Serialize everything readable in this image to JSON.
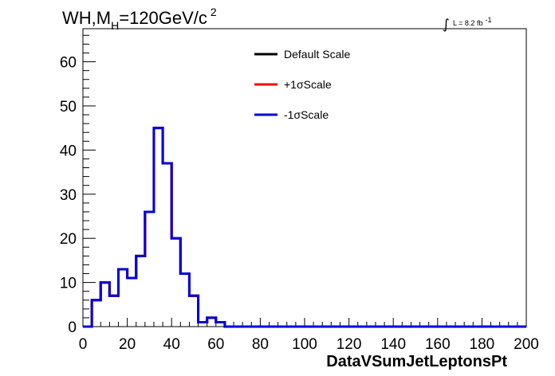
{
  "chart_data": {
    "type": "step",
    "title_prefix": "WH,M",
    "title_sub": "H",
    "title_suffix": "=120GeV/c",
    "title_sup": "2",
    "lumi_label": "L = 8.2 fb",
    "lumi_sup": "-1",
    "xlabel": "DataVSumJetLeptonsPt",
    "ylabel": "",
    "xlim": [
      0,
      200
    ],
    "ylim": [
      0,
      67.5
    ],
    "x_ticks": [
      0,
      20,
      40,
      60,
      80,
      100,
      120,
      140,
      160,
      180,
      200
    ],
    "y_ticks": [
      0,
      10,
      20,
      30,
      40,
      50,
      60
    ],
    "x_tick_labels": [
      "0",
      "20",
      "40",
      "60",
      "80",
      "100",
      "120",
      "140",
      "160",
      "180",
      "200"
    ],
    "y_tick_labels": [
      "0",
      "10",
      "20",
      "30",
      "40",
      "50",
      "60"
    ],
    "bin_edges": [
      0,
      4,
      8,
      12,
      16,
      20,
      24,
      28,
      32,
      36,
      40,
      44,
      48,
      52,
      56,
      60,
      64,
      200
    ],
    "legend_position": "top-center",
    "series": [
      {
        "name": "Default Scale",
        "color": "#000000",
        "values": [
          0,
          6,
          10,
          7,
          13,
          11,
          16,
          26,
          45,
          37,
          20,
          12,
          7,
          1,
          2,
          1,
          0
        ]
      },
      {
        "name": "+1σScale",
        "color": "#ff0000",
        "values": [
          0,
          6,
          10,
          7,
          13,
          11,
          16,
          26,
          45,
          37,
          20,
          12,
          7,
          1,
          2,
          1,
          0
        ]
      },
      {
        "name": "-1σScale",
        "color": "#0000dd",
        "values": [
          0,
          6,
          10,
          7,
          13,
          11,
          16,
          26,
          45,
          37,
          20,
          12,
          7,
          1,
          2,
          1,
          0
        ]
      }
    ]
  }
}
